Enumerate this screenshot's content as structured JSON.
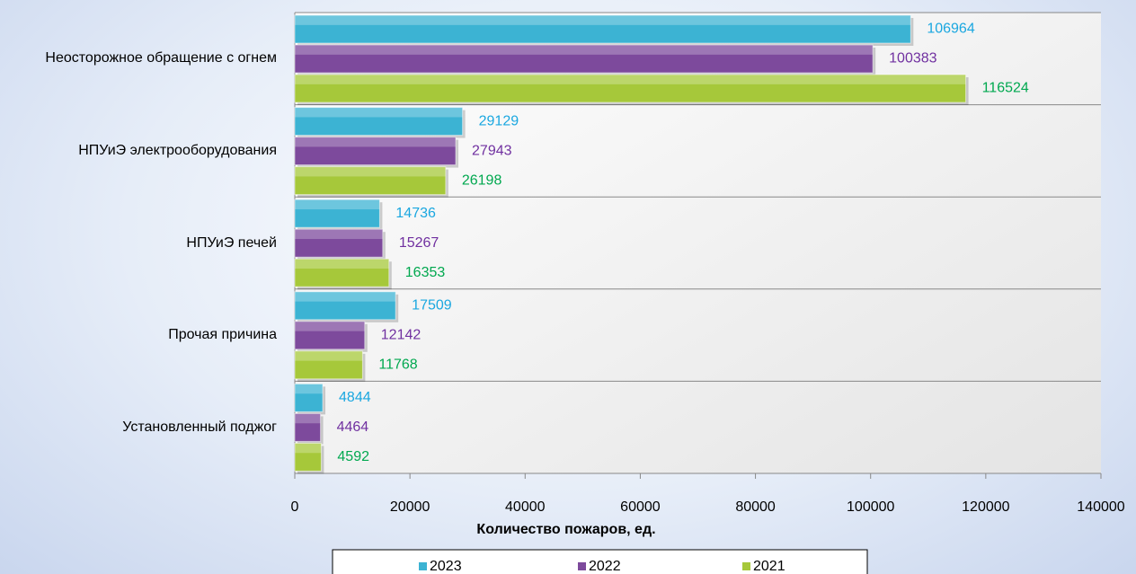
{
  "chart_data": {
    "type": "bar",
    "orientation": "horizontal",
    "categories": [
      "Неосторожное обращение с огнем",
      "НПУиЭ электрооборудования",
      "НПУиЭ печей",
      "Прочая причина",
      "Установленный поджог"
    ],
    "series": [
      {
        "name": "2023",
        "color": "#3cb3d3",
        "label_color": "#1aa7e0",
        "values": [
          106964,
          29129,
          14736,
          17509,
          4844
        ]
      },
      {
        "name": "2022",
        "color": "#7d4a9c",
        "label_color": "#7030a0",
        "values": [
          100383,
          27943,
          15267,
          12142,
          4464
        ]
      },
      {
        "name": "2021",
        "color": "#a6c83a",
        "label_color": "#00a84f",
        "values": [
          116524,
          26198,
          16353,
          11768,
          4592
        ]
      }
    ],
    "x_label": "Количество пожаров, ед.",
    "xlim": [
      0,
      140000
    ],
    "xticks": [
      0,
      20000,
      40000,
      60000,
      80000,
      100000,
      120000,
      140000
    ],
    "grid": true,
    "legend": "bottom"
  }
}
